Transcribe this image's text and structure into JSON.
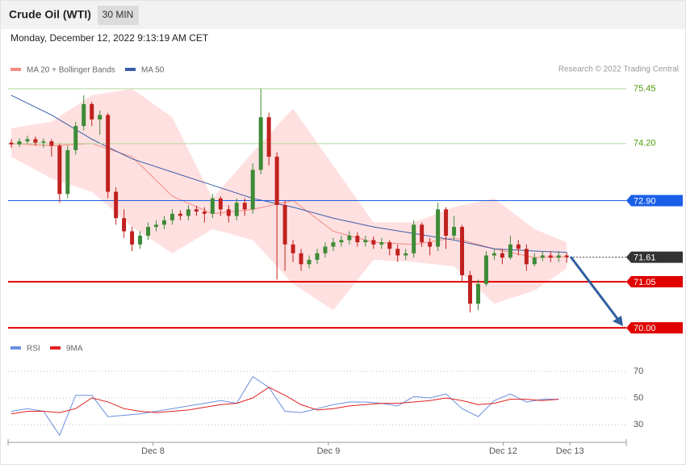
{
  "chart_data": [
    {
      "type": "candlestick",
      "title": "Crude Oil (WTI)",
      "timeframe": "30 MIN",
      "subtitle": "Monday, December 12, 2022 9:13:19 AM CET",
      "source": "Research © 2022 Trading Central",
      "x": [
        0,
        1,
        2,
        3,
        4,
        5,
        6,
        7,
        8,
        9,
        10,
        11,
        12,
        13,
        14,
        15,
        16,
        17,
        18,
        19,
        20,
        21,
        22,
        23,
        24,
        25,
        26,
        27,
        28,
        29,
        30,
        31,
        32,
        33,
        34,
        35,
        36,
        37,
        38,
        39,
        40,
        41,
        42,
        43,
        44,
        45,
        46,
        47,
        48,
        49,
        50,
        51,
        52,
        53,
        54,
        55,
        56,
        57,
        58,
        59,
        60,
        61,
        62,
        63,
        64,
        65,
        66,
        67,
        68,
        69
      ],
      "open": [
        74.22,
        74.18,
        74.25,
        74.3,
        74.22,
        74.25,
        74.15,
        73.05,
        74.05,
        74.6,
        75.1,
        74.75,
        74.85,
        73.1,
        72.5,
        72.2,
        71.9,
        72.1,
        72.3,
        72.35,
        72.45,
        72.6,
        72.55,
        72.7,
        72.65,
        72.6,
        72.95,
        72.7,
        72.55,
        72.85,
        72.7,
        73.6,
        74.8,
        73.9,
        72.8,
        71.9,
        71.7,
        71.45,
        71.55,
        71.7,
        71.85,
        71.95,
        72.0,
        72.1,
        71.95,
        72.0,
        71.9,
        71.95,
        71.8,
        71.65,
        71.7,
        72.35,
        71.95,
        71.85,
        72.7,
        72.1,
        72.3,
        71.2,
        70.55,
        71.0,
        71.65,
        71.7,
        71.6,
        71.9,
        71.8,
        71.45,
        71.6,
        71.65,
        71.6,
        71.65
      ],
      "high": [
        74.3,
        74.32,
        74.38,
        74.36,
        74.32,
        74.3,
        74.2,
        74.15,
        74.7,
        75.3,
        75.15,
        74.95,
        74.9,
        73.2,
        72.7,
        72.3,
        72.2,
        72.4,
        72.45,
        72.55,
        72.7,
        72.68,
        72.8,
        72.78,
        72.75,
        73.05,
        73.0,
        72.8,
        72.95,
        72.95,
        73.75,
        75.45,
        74.9,
        74.0,
        72.9,
        72.0,
        71.8,
        71.65,
        71.8,
        71.95,
        72.05,
        72.1,
        72.2,
        72.18,
        72.1,
        72.08,
        72.05,
        72.0,
        71.9,
        71.8,
        72.45,
        72.4,
        72.05,
        72.85,
        72.75,
        72.55,
        72.35,
        71.3,
        71.1,
        71.75,
        71.8,
        71.8,
        72.1,
        72.0,
        71.9,
        71.7,
        71.75,
        71.75,
        71.75,
        71.72
      ],
      "low": [
        74.1,
        74.12,
        74.2,
        74.15,
        74.1,
        73.9,
        72.85,
        72.95,
        73.95,
        74.5,
        74.6,
        74.4,
        72.95,
        72.35,
        72.05,
        71.75,
        71.8,
        72.0,
        72.2,
        72.25,
        72.35,
        72.45,
        72.45,
        72.55,
        72.4,
        72.5,
        72.55,
        72.4,
        72.45,
        72.55,
        72.6,
        73.5,
        73.7,
        71.1,
        71.3,
        71.5,
        71.3,
        71.35,
        71.45,
        71.6,
        71.75,
        71.85,
        71.9,
        71.85,
        71.85,
        71.8,
        71.8,
        71.65,
        71.5,
        71.55,
        71.6,
        71.85,
        71.65,
        71.75,
        71.8,
        72.0,
        71.05,
        70.35,
        70.4,
        70.95,
        71.55,
        71.45,
        71.55,
        71.65,
        71.3,
        71.4,
        71.52,
        71.5,
        71.5,
        71.48
      ],
      "close": [
        74.18,
        74.25,
        74.3,
        74.22,
        74.25,
        74.15,
        73.05,
        74.05,
        74.6,
        75.1,
        74.75,
        74.85,
        73.1,
        72.5,
        72.2,
        71.9,
        72.1,
        72.3,
        72.35,
        72.45,
        72.6,
        72.55,
        72.7,
        72.65,
        72.6,
        72.95,
        72.7,
        72.55,
        72.85,
        72.7,
        73.6,
        74.8,
        73.9,
        72.8,
        71.9,
        71.7,
        71.45,
        71.55,
        71.7,
        71.85,
        71.95,
        72.0,
        72.1,
        71.95,
        72.0,
        71.9,
        71.95,
        71.8,
        71.65,
        71.7,
        72.35,
        71.95,
        71.85,
        72.7,
        72.1,
        72.3,
        71.2,
        70.55,
        71.0,
        71.65,
        71.7,
        71.6,
        71.9,
        71.8,
        71.45,
        71.6,
        71.65,
        71.6,
        71.65,
        71.61
      ],
      "up_color": "#3d8b37",
      "down_color": "#c0211f",
      "series": [
        {
          "name": "MA 20 + Bollinger Bands",
          "color": "#f28b82",
          "band_color": "#ffe0e0",
          "x": [
            0,
            5,
            10,
            15,
            20,
            25,
            30,
            35,
            40,
            45,
            50,
            55,
            60,
            65,
            69
          ],
          "values": [
            74.2,
            74.15,
            74.2,
            73.9,
            73.0,
            72.6,
            72.7,
            72.9,
            72.2,
            71.95,
            71.9,
            72.05,
            71.8,
            71.6,
            71.62
          ],
          "upper": [
            74.55,
            74.7,
            75.3,
            75.45,
            74.8,
            72.95,
            74.0,
            75.0,
            73.7,
            72.4,
            72.4,
            72.75,
            72.95,
            72.25,
            71.95
          ],
          "lower": [
            73.9,
            73.4,
            73.1,
            72.3,
            71.7,
            72.25,
            72.0,
            71.0,
            70.4,
            71.55,
            71.5,
            71.4,
            70.55,
            70.85,
            71.35
          ]
        },
        {
          "name": "MA 50",
          "color": "#3a5ea8",
          "x": [
            0,
            5,
            10,
            15,
            20,
            25,
            30,
            35,
            40,
            45,
            50,
            55,
            60,
            65,
            69
          ],
          "values": [
            75.3,
            74.85,
            74.3,
            73.85,
            73.55,
            73.25,
            72.95,
            72.75,
            72.5,
            72.3,
            72.15,
            72.0,
            71.8,
            71.75,
            71.72
          ]
        }
      ],
      "levels": [
        {
          "value": 75.45,
          "color": "#b5d99c",
          "text_color": "#4e9a06",
          "boxed": false,
          "width": 1
        },
        {
          "value": 74.2,
          "label": "74.20",
          "color": "#b5d99c",
          "text_color": "#4e9a06",
          "boxed": false,
          "width": 1
        },
        {
          "value": 72.9,
          "label": "72.90",
          "color": "#1a5fe8",
          "boxed": true,
          "width": 1
        },
        {
          "value": 71.61,
          "color": "#333333",
          "boxed": true,
          "dotted": true,
          "width": 1
        },
        {
          "value": 71.05,
          "color": "#e00000",
          "boxed": true,
          "width": 2
        },
        {
          "value": 70,
          "label": "70.00",
          "color": "#e00000",
          "boxed": true,
          "width": 2
        }
      ],
      "xlim": [
        -0.4,
        76.4
      ],
      "ylim": [
        69.8,
        75.65
      ]
    },
    {
      "type": "line",
      "x": [
        0,
        2,
        4,
        6,
        8,
        10,
        12,
        14,
        16,
        18,
        20,
        22,
        24,
        26,
        28,
        30,
        32,
        34,
        36,
        38,
        40,
        42,
        44,
        46,
        48,
        50,
        52,
        54,
        56,
        58,
        60,
        62,
        64,
        66,
        68
      ],
      "series": [
        {
          "name": "RSI",
          "color": "#6b8fe0",
          "values": [
            40,
            42,
            40,
            22,
            52,
            52,
            36,
            37,
            38,
            40,
            42,
            44,
            46,
            48,
            46,
            66,
            58,
            40,
            39,
            42,
            45,
            47,
            47,
            46,
            44,
            51,
            50,
            53,
            42,
            36,
            48,
            53,
            47,
            49,
            49
          ]
        },
        {
          "name": "9MA",
          "color": "#e02020",
          "values": [
            38,
            40,
            40,
            39,
            42,
            50,
            47,
            42,
            40,
            39,
            40,
            41,
            43,
            45,
            46,
            50,
            58,
            52,
            45,
            41,
            42,
            44,
            45,
            46,
            46,
            47,
            48,
            50,
            48,
            45,
            46,
            49,
            49,
            48,
            49
          ]
        }
      ],
      "xlim": [
        -0.4,
        76.4
      ],
      "ylim": [
        21,
        79
      ],
      "yticks": [
        30,
        50,
        70
      ],
      "xticks": [
        {
          "value": 17.6,
          "label": "Dec 8"
        },
        {
          "value": 39.4,
          "label": "Dec 9"
        },
        {
          "value": 61.1,
          "label": "Dec 12"
        },
        {
          "value": 69.4,
          "label": "Dec 13"
        }
      ]
    }
  ]
}
